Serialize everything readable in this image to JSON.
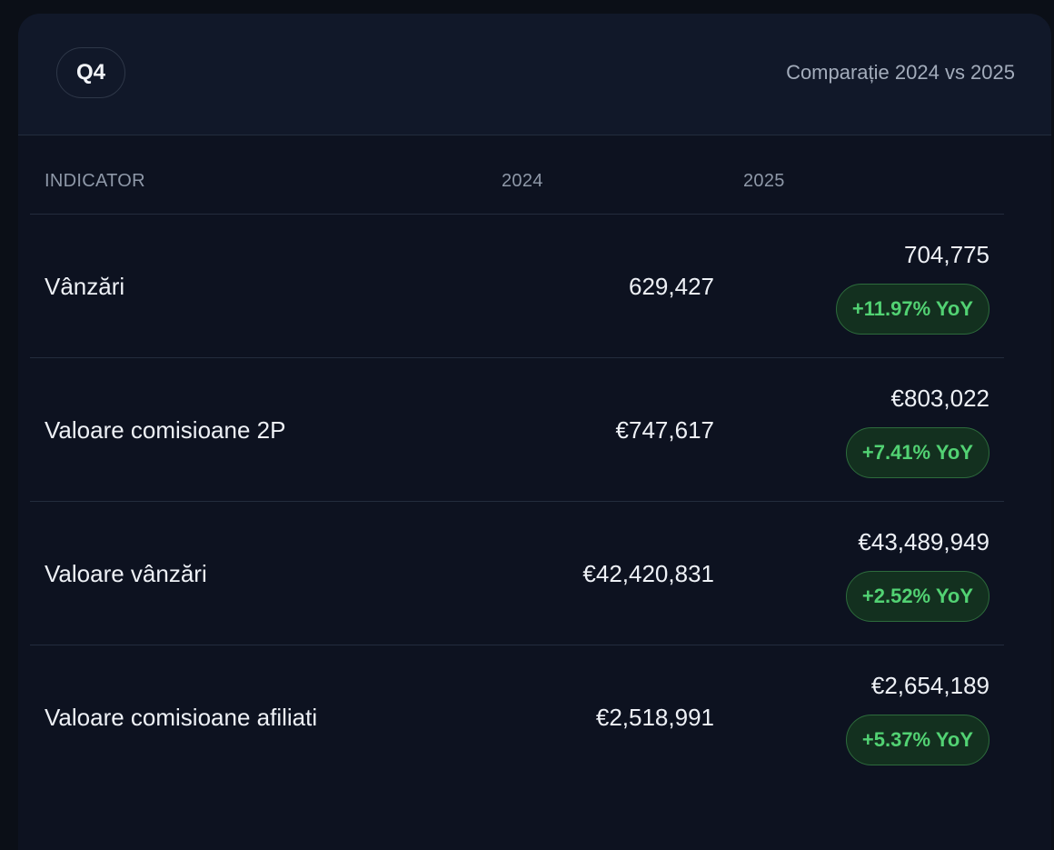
{
  "header": {
    "quarter": "Q4",
    "subtitle": "Comparație 2024 vs 2025"
  },
  "table": {
    "columns": [
      "INDICATOR",
      "2024",
      "2025"
    ],
    "rows": [
      {
        "indicator": "Vânzări",
        "v2024": "629,427",
        "v2025": "704,775",
        "yoy": "+11.97% YoY"
      },
      {
        "indicator": "Valoare comisioane 2P",
        "v2024": "€747,617",
        "v2025": "€803,022",
        "yoy": "+7.41% YoY"
      },
      {
        "indicator": "Valoare vânzări",
        "v2024": "€42,420,831",
        "v2025": "€43,489,949",
        "yoy": "+2.52% YoY"
      },
      {
        "indicator": "Valoare comisioane afiliati",
        "v2024": "€2,518,991",
        "v2025": "€2,654,189",
        "yoy": "+5.37% YoY"
      }
    ]
  },
  "colors": {
    "background": "#0b0f17",
    "card": "#0d1220",
    "header": "#111829",
    "positive_text": "#52d273",
    "positive_bg": "#13301f"
  }
}
